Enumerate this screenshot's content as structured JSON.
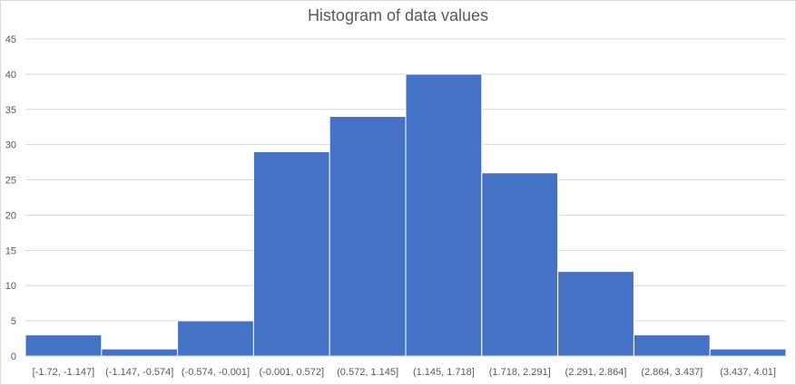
{
  "chart_data": {
    "type": "bar",
    "title": "Histogram of data values",
    "categories": [
      "[-1.72, -1.147]",
      "(-1.147, -0.574]",
      "(-0.574, -0.001]",
      "(-0.001, 0.572]",
      "(0.572, 1.145]",
      "(1.145, 1.718]",
      "(1.718, 2.291]",
      "(2.291, 2.864]",
      "(2.864, 3.437]",
      "(3.437, 4.01]"
    ],
    "values": [
      3,
      1,
      5,
      29,
      34,
      40,
      26,
      12,
      3,
      1
    ],
    "ylim": [
      0,
      45
    ],
    "yticks": [
      "0",
      "5",
      "10",
      "15",
      "20",
      "25",
      "30",
      "35",
      "40",
      "45"
    ],
    "grid": true,
    "bar_color": "#4472C4",
    "gridline_color": "#d9d9d9"
  }
}
